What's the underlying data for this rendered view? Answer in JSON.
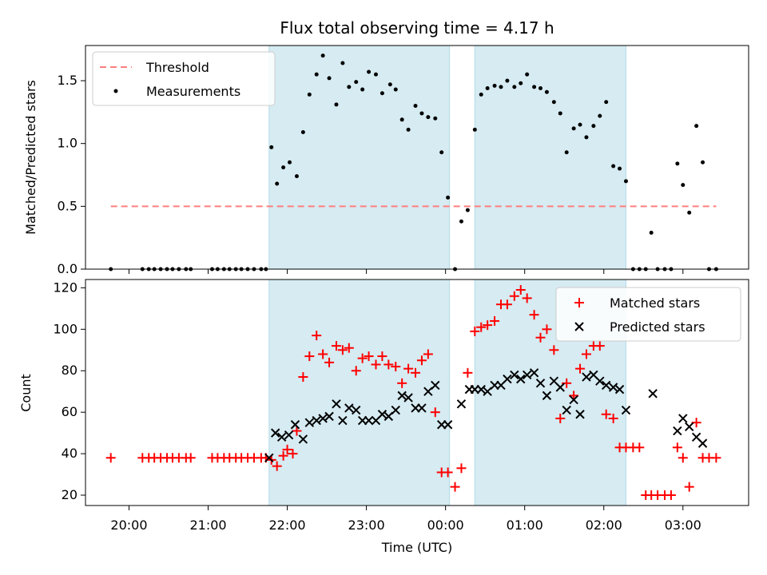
{
  "chart_data": [
    {
      "panel": "top",
      "type": "scatter",
      "title": "Flux total observing time = 4.17 h",
      "xlabel": "",
      "ylabel": "Matched/Predicted stars",
      "ylim": [
        0,
        1.78
      ],
      "yticks": [
        0.0,
        0.5,
        1.0,
        1.5
      ],
      "ytick_labels": [
        "0.0",
        "0.5",
        "1.0",
        "1.5"
      ],
      "shaded_intervals_hours": [
        [
          21.77,
          0.05
        ],
        [
          0.37,
          2.28
        ]
      ],
      "shade_color": "#add8e6",
      "legend_position": "top-left",
      "threshold": {
        "name": "Threshold",
        "y": 0.5,
        "x_range": [
          19.77,
          3.42
        ],
        "color": "#ff7f7f"
      },
      "series": [
        {
          "name": "Measurements",
          "color": "#000000",
          "x": [
            19.77,
            20.17,
            20.25,
            20.32,
            20.4,
            20.48,
            20.55,
            20.63,
            20.72,
            20.78,
            21.05,
            21.12,
            21.2,
            21.27,
            21.35,
            21.42,
            21.5,
            21.58,
            21.67,
            21.73,
            21.8,
            21.87,
            21.95,
            22.03,
            22.12,
            22.2,
            22.28,
            22.37,
            22.45,
            22.53,
            22.62,
            22.7,
            22.78,
            22.87,
            22.95,
            23.03,
            23.12,
            23.2,
            23.3,
            23.37,
            23.45,
            23.53,
            23.62,
            23.7,
            23.78,
            23.87,
            23.95,
            0.03,
            0.12,
            0.2,
            0.28,
            0.37,
            0.45,
            0.53,
            0.62,
            0.7,
            0.78,
            0.87,
            0.95,
            1.03,
            1.12,
            1.2,
            1.28,
            1.37,
            1.45,
            1.53,
            1.62,
            1.7,
            1.78,
            1.87,
            1.95,
            2.03,
            2.12,
            2.2,
            2.28,
            2.37,
            2.45,
            2.53,
            2.6,
            2.68,
            2.77,
            2.85,
            2.93,
            3.0,
            3.08,
            3.17,
            3.25,
            3.33,
            3.42
          ],
          "y": [
            0,
            0,
            0,
            0,
            0,
            0,
            0,
            0,
            0,
            0,
            0,
            0,
            0,
            0,
            0,
            0,
            0,
            0,
            0,
            0,
            0.97,
            0.68,
            0.81,
            0.85,
            0.74,
            1.09,
            1.39,
            1.55,
            1.7,
            1.52,
            1.31,
            1.64,
            1.45,
            1.49,
            1.43,
            1.57,
            1.55,
            1.4,
            1.47,
            1.43,
            1.19,
            1.11,
            1.3,
            1.24,
            1.21,
            1.2,
            0.93,
            0.57,
            0.0,
            0.38,
            0.47,
            1.11,
            1.39,
            1.44,
            1.46,
            1.45,
            1.5,
            1.45,
            1.48,
            1.55,
            1.45,
            1.44,
            1.41,
            1.33,
            1.24,
            0.93,
            1.12,
            1.15,
            1.05,
            1.14,
            1.22,
            1.33,
            0.82,
            0.8,
            0.7,
            0,
            0,
            0,
            0.29,
            0,
            0,
            0,
            0.84,
            0.67,
            0.45,
            1.14,
            0.85,
            0,
            0
          ]
        }
      ]
    },
    {
      "panel": "bottom",
      "type": "scatter",
      "title": "",
      "xlabel": "Time (UTC)",
      "ylabel": "Count",
      "ylim": [
        15,
        124
      ],
      "yticks": [
        20,
        40,
        60,
        80,
        100,
        120
      ],
      "ytick_labels": [
        "20",
        "40",
        "60",
        "80",
        "100",
        "120"
      ],
      "xlim_hours": [
        19.45,
        3.83
      ],
      "xticks_hours": [
        20,
        21,
        22,
        23,
        0,
        1,
        2,
        3
      ],
      "xtick_labels": [
        "20:00",
        "21:00",
        "22:00",
        "23:00",
        "00:00",
        "01:00",
        "02:00",
        "03:00"
      ],
      "shaded_intervals_hours": [
        [
          21.77,
          0.05
        ],
        [
          0.37,
          2.28
        ]
      ],
      "shade_color": "#add8e6",
      "legend_position": "top-right",
      "series": [
        {
          "name": "Matched stars",
          "marker": "plus",
          "color": "#ff0000",
          "x": [
            19.77,
            20.17,
            20.25,
            20.32,
            20.4,
            20.48,
            20.55,
            20.63,
            20.72,
            20.78,
            21.05,
            21.12,
            21.2,
            21.27,
            21.35,
            21.42,
            21.5,
            21.58,
            21.67,
            21.73,
            21.8,
            21.87,
            21.95,
            22.0,
            22.07,
            22.12,
            22.2,
            22.28,
            22.37,
            22.45,
            22.53,
            22.62,
            22.7,
            22.78,
            22.87,
            22.95,
            23.03,
            23.12,
            23.2,
            23.28,
            23.37,
            23.45,
            23.53,
            23.62,
            23.7,
            23.78,
            23.87,
            23.95,
            0.03,
            0.12,
            0.2,
            0.28,
            0.37,
            0.45,
            0.53,
            0.62,
            0.7,
            0.78,
            0.87,
            0.95,
            1.03,
            1.12,
            1.2,
            1.28,
            1.37,
            1.45,
            1.53,
            1.62,
            1.7,
            1.78,
            1.87,
            1.95,
            2.03,
            2.12,
            2.2,
            2.28,
            2.37,
            2.45,
            2.53,
            2.6,
            2.68,
            2.77,
            2.85,
            2.93,
            3.0,
            3.08,
            3.17,
            3.25,
            3.33,
            3.42
          ],
          "y": [
            38,
            38,
            38,
            38,
            38,
            38,
            38,
            38,
            38,
            38,
            38,
            38,
            38,
            38,
            38,
            38,
            38,
            38,
            38,
            38,
            37,
            34,
            39,
            42,
            40,
            51,
            77,
            87,
            97,
            88,
            84,
            92,
            90,
            91,
            80,
            86,
            87,
            83,
            87,
            83,
            82,
            74,
            81,
            79,
            85,
            88,
            60,
            31,
            31,
            24,
            33,
            79,
            99,
            101,
            102,
            104,
            112,
            112,
            116,
            119,
            115,
            107,
            96,
            100,
            90,
            57,
            74,
            68,
            81,
            88,
            92,
            92,
            59,
            57,
            43,
            43,
            43,
            43,
            20,
            20,
            20,
            20,
            20,
            43,
            38,
            24,
            55,
            38,
            38,
            38
          ]
        },
        {
          "name": "Predicted stars",
          "marker": "x",
          "color": "#000000",
          "x": [
            21.77,
            21.85,
            21.93,
            22.02,
            22.1,
            22.2,
            22.28,
            22.37,
            22.45,
            22.53,
            22.62,
            22.7,
            22.78,
            22.87,
            22.95,
            23.03,
            23.12,
            23.2,
            23.28,
            23.37,
            23.45,
            23.53,
            23.62,
            23.7,
            23.78,
            23.87,
            23.95,
            0.03,
            0.2,
            0.3,
            0.37,
            0.45,
            0.53,
            0.62,
            0.7,
            0.78,
            0.87,
            0.95,
            1.03,
            1.12,
            1.2,
            1.28,
            1.37,
            1.45,
            1.53,
            1.62,
            1.7,
            1.78,
            1.87,
            1.95,
            2.03,
            2.12,
            2.2,
            2.28,
            2.62,
            2.93,
            3.0,
            3.08,
            3.17,
            3.25
          ],
          "y": [
            38,
            50,
            48,
            49,
            54,
            47,
            55,
            56,
            57,
            58,
            64,
            56,
            62,
            61,
            56,
            56,
            56,
            59,
            58,
            61,
            68,
            67,
            62,
            62,
            70,
            73,
            54,
            54,
            64,
            71,
            71,
            71,
            70,
            73,
            73,
            76,
            78,
            76,
            78,
            79,
            74,
            68,
            75,
            72,
            61,
            66,
            59,
            77,
            78,
            75,
            73,
            72,
            71,
            61,
            69,
            51,
            57,
            53,
            48,
            45
          ]
        }
      ]
    }
  ]
}
